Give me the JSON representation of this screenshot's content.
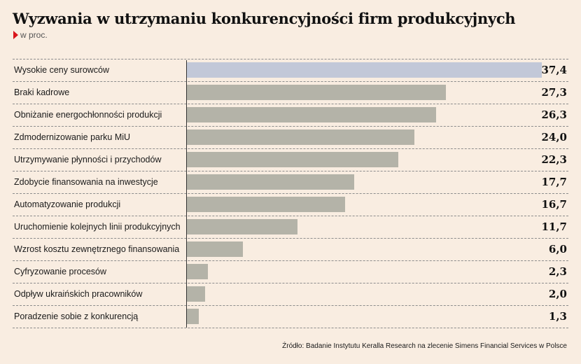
{
  "title": "Wyzwania w utrzymaniu konkurencyjności firm produkcyjnych",
  "subtitle": "w proc.",
  "source": "Źródło: Badanie Instytutu Keralla Research na zlecenie Simens Financial Services w Polsce",
  "colors": {
    "highlight": "#c2c8d8",
    "bar": "#b4b3a8",
    "marker": "#d9141b",
    "background": "#f9ede1"
  },
  "chart_data": {
    "type": "bar",
    "orientation": "horizontal",
    "title": "Wyzwania w utrzymaniu konkurencyjności firm produkcyjnych",
    "subtitle": "w proc.",
    "categories": [
      "Wysokie ceny surowców",
      "Braki kadrowe",
      "Obniżanie energochłonności produkcji",
      "Zdmodernizowanie parku MiU",
      "Utrzymywanie płynności i przychodów",
      "Zdobycie finansowania na inwestycje",
      "Automatyzowanie produkcji",
      "Uruchomienie kolejnych linii produkcyjnych",
      "Wzrost kosztu zewnętrznego finansowania",
      "Cyfryzowanie procesów",
      "Odpływ ukraińskich pracowników",
      "Poradzenie sobie z konkurencją"
    ],
    "values": [
      37.4,
      27.3,
      26.3,
      24.0,
      22.3,
      17.7,
      16.7,
      11.7,
      6.0,
      2.3,
      2.0,
      1.3
    ],
    "value_labels": [
      "37,4",
      "27,3",
      "26,3",
      "24,0",
      "22,3",
      "17,7",
      "16,7",
      "11,7",
      "6,0",
      "2,3",
      "2,0",
      "1,3"
    ],
    "highlight_index": 0,
    "xlim": [
      0,
      37.4
    ],
    "grid": false
  }
}
